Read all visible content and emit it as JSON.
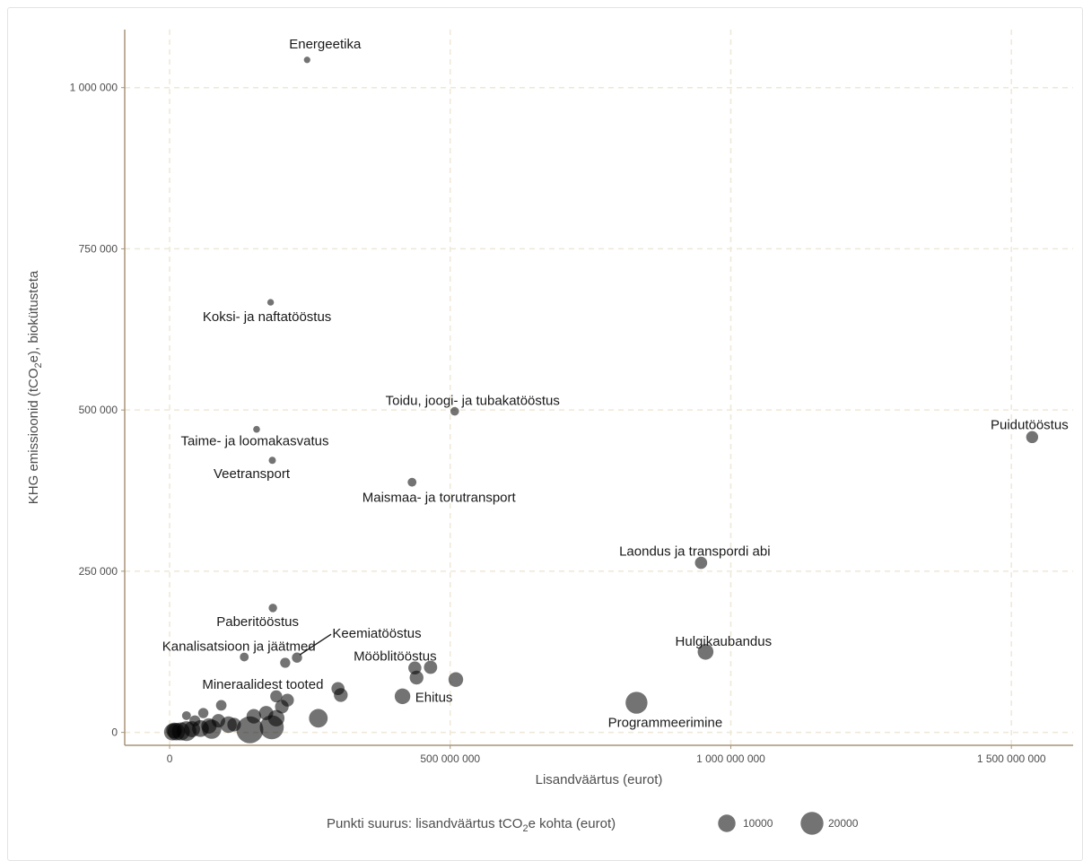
{
  "chart_data": {
    "type": "scatter",
    "xlabel": "Lisandväärtus (eurot)",
    "ylabel_parts": [
      "KHG emissioonid (tCO",
      "2",
      "e), biokütusteta"
    ],
    "xlim": [
      -80000000,
      1610000000
    ],
    "ylim": [
      -20000,
      1090000
    ],
    "x_ticks": [
      0,
      500000000,
      1000000000,
      1500000000
    ],
    "x_tick_labels": [
      "0",
      "500 000 000",
      "1 000 000 000",
      "1 500 000 000"
    ],
    "y_ticks": [
      0,
      250000,
      500000,
      750000,
      1000000
    ],
    "y_tick_labels": [
      "0",
      "250 000",
      "500 000",
      "750 000",
      "1 000 000"
    ],
    "grid": true,
    "grid_style": "dashed",
    "point_color": "#000000",
    "point_opacity": 0.55,
    "axis_color": "#a89478",
    "grid_color": "#efe7d8",
    "size_legend": {
      "title_parts": [
        "Punkti suurus: lisandväärtus tCO",
        "2",
        "e kohta (eurot)"
      ],
      "entries": [
        {
          "label": "10000",
          "value": 10000
        },
        {
          "label": "20000",
          "value": 20000
        }
      ],
      "placement": "bottom"
    },
    "points": [
      {
        "name": "Energeetika",
        "x": 245000000,
        "y": 1043000,
        "size": 240
      },
      {
        "name": "Koksi- ja naftatööstus",
        "x": 180000000,
        "y": 667000,
        "size": 270
      },
      {
        "name": "Toidu, joogi- ja tubakatööstus",
        "x": 508000000,
        "y": 498000,
        "size": 1020
      },
      {
        "name": "Taime- ja loomakasvatus",
        "x": 155000000,
        "y": 470000,
        "size": 330
      },
      {
        "name": "Veetransport",
        "x": 183000000,
        "y": 422000,
        "size": 430
      },
      {
        "name": "Maismaa- ja torutransport",
        "x": 432000000,
        "y": 388000,
        "size": 1110
      },
      {
        "name": "Puidutööstus",
        "x": 1537000000,
        "y": 458000,
        "size": 3360
      },
      {
        "name": "Laondus ja transpordi abi",
        "x": 947000000,
        "y": 263000,
        "size": 3600
      },
      {
        "name": "Paberitööstus",
        "x": 184000000,
        "y": 193000,
        "size": 950
      },
      {
        "name": "Kanalisatsioon ja jäätmed",
        "x": 133000000,
        "y": 117000,
        "size": 1140
      },
      {
        "name": "Keemiatööstus",
        "x": 227000000,
        "y": 116000,
        "size": 1960
      },
      {
        "name": "Mineraalidest tooted",
        "x": 206000000,
        "y": 108000,
        "size": 1910
      },
      {
        "name": "Mööblitööstus",
        "x": 437000000,
        "y": 100000,
        "size": 4370
      },
      {
        "name": "Hulgikaubandus",
        "x": 955000000,
        "y": 125000,
        "size": 7640
      },
      {
        "name": "Ehitus",
        "x": 415000000,
        "y": 56000,
        "size": 7410
      },
      {
        "name": "Programmeerimine",
        "x": 832000000,
        "y": 46000,
        "size": 18090
      },
      {
        "name": "",
        "x": 465000000,
        "y": 101000,
        "size": 4600
      },
      {
        "name": "",
        "x": 440000000,
        "y": 85000,
        "size": 5200
      },
      {
        "name": "",
        "x": 510000000,
        "y": 82000,
        "size": 6200
      },
      {
        "name": "",
        "x": 300000000,
        "y": 68000,
        "size": 4400
      },
      {
        "name": "",
        "x": 305000000,
        "y": 58000,
        "size": 5200
      },
      {
        "name": "",
        "x": 210000000,
        "y": 50000,
        "size": 4200
      },
      {
        "name": "",
        "x": 190000000,
        "y": 56000,
        "size": 3400
      },
      {
        "name": "",
        "x": 200000000,
        "y": 40000,
        "size": 5000
      },
      {
        "name": "",
        "x": 265000000,
        "y": 22000,
        "size": 12000
      },
      {
        "name": "",
        "x": 172000000,
        "y": 30000,
        "size": 5700
      },
      {
        "name": "",
        "x": 190000000,
        "y": 22000,
        "size": 8600
      },
      {
        "name": "",
        "x": 150000000,
        "y": 25000,
        "size": 6000
      },
      {
        "name": "",
        "x": 182000000,
        "y": 8000,
        "size": 22700
      },
      {
        "name": "",
        "x": 143000000,
        "y": 4000,
        "size": 30000
      },
      {
        "name": "",
        "x": 92000000,
        "y": 42000,
        "size": 2200
      },
      {
        "name": "",
        "x": 60000000,
        "y": 30000,
        "size": 2000
      },
      {
        "name": "",
        "x": 30000000,
        "y": 26000,
        "size": 1150
      },
      {
        "name": "",
        "x": 45000000,
        "y": 18000,
        "size": 2500
      },
      {
        "name": "",
        "x": 87000000,
        "y": 18000,
        "size": 4800
      },
      {
        "name": "",
        "x": 105000000,
        "y": 12000,
        "size": 8700
      },
      {
        "name": "",
        "x": 115000000,
        "y": 12000,
        "size": 5000
      },
      {
        "name": "",
        "x": 70000000,
        "y": 10000,
        "size": 7000
      },
      {
        "name": "",
        "x": 75000000,
        "y": 5000,
        "size": 13000
      },
      {
        "name": "",
        "x": 55000000,
        "y": 6000,
        "size": 9000
      },
      {
        "name": "",
        "x": 40000000,
        "y": 5000,
        "size": 8000
      },
      {
        "name": "",
        "x": 30000000,
        "y": 2000,
        "size": 14000
      },
      {
        "name": "",
        "x": 20000000,
        "y": 1500,
        "size": 11000
      },
      {
        "name": "",
        "x": 12000000,
        "y": 1000,
        "size": 10000
      },
      {
        "name": "",
        "x": 5000000,
        "y": 500,
        "size": 9000
      },
      {
        "name": "",
        "x": 8000000,
        "y": 3000,
        "size": 7500
      }
    ]
  }
}
